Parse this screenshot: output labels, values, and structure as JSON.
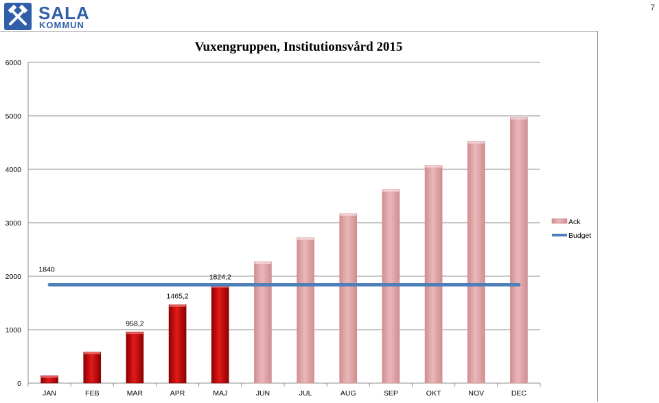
{
  "header": {
    "logo_line1": "SALA",
    "logo_line2": "KOMMUN",
    "page_number": "7"
  },
  "chart_data": {
    "type": "bar",
    "title": "Vuxengruppen, Institutionsvård 2015",
    "xlabel": "",
    "ylabel": "",
    "ylim": [
      0,
      6000
    ],
    "yticks": [
      0,
      1000,
      2000,
      3000,
      4000,
      5000,
      6000
    ],
    "grid": true,
    "legend_position": "right",
    "categories": [
      "JAN",
      "FEB",
      "MAR",
      "APR",
      "MAJ",
      "JUN",
      "JUL",
      "AUG",
      "SEP",
      "OKT",
      "NOV",
      "DEC"
    ],
    "series": [
      {
        "name": "Ack",
        "kind": "bar",
        "values": [
          140,
          580,
          958.2,
          1465.2,
          1824.2,
          2270,
          2720,
          3170,
          3620,
          4070,
          4520,
          4970
        ],
        "actual_count": 5,
        "actual_color": "#cc0000",
        "forecast_color": "#e3a3a5"
      },
      {
        "name": "Budget",
        "kind": "line",
        "values": [
          1840,
          1840,
          1840,
          1840,
          1840,
          1840,
          1840,
          1840,
          1840,
          1840,
          1840,
          1840
        ],
        "color": "#4f7fb8"
      }
    ],
    "data_labels": [
      {
        "category": "MAR",
        "value": 958.2,
        "text": "958,2"
      },
      {
        "category": "APR",
        "value": 1465.2,
        "text": "1465,2"
      },
      {
        "category": "MAJ",
        "value": 1824.2,
        "text": "1824,2"
      },
      {
        "category": "JAN",
        "value": 1840,
        "text": "1840"
      }
    ]
  }
}
